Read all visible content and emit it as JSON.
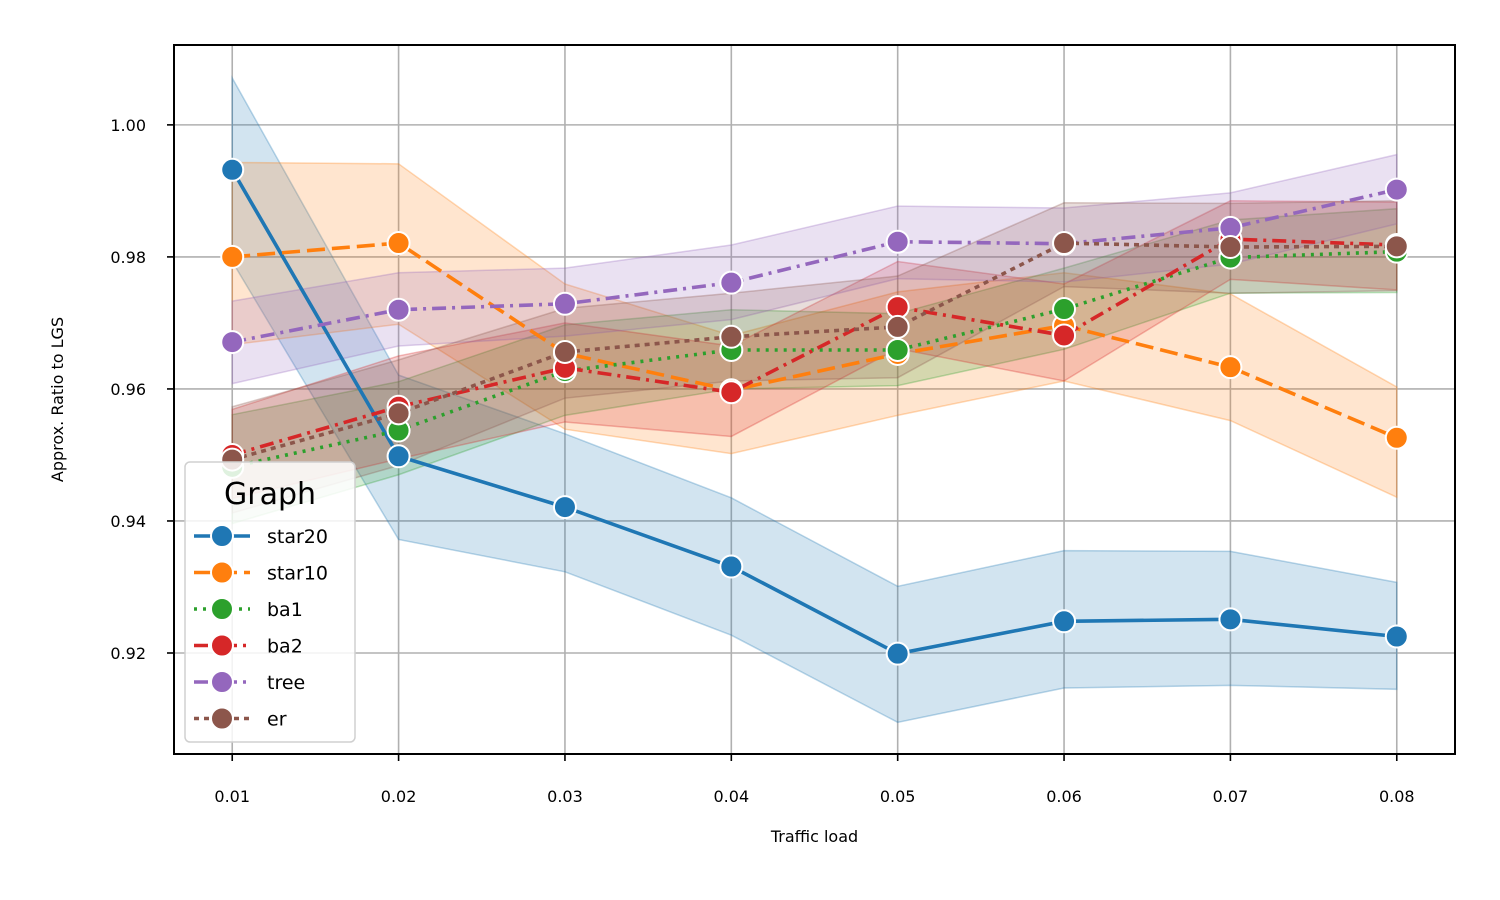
{
  "chart_data": {
    "type": "line",
    "title": "",
    "xlabel": "Traffic load",
    "ylabel": "Approx. Ratio to LGS",
    "x": [
      0.01,
      0.02,
      0.03,
      0.04,
      0.05,
      0.06,
      0.07,
      0.08
    ],
    "x_tick_labels": [
      "0.01",
      "0.02",
      "0.03",
      "0.04",
      "0.05",
      "0.06",
      "0.07",
      "0.08"
    ],
    "y_ticks": [
      0.92,
      0.94,
      0.96,
      0.98,
      1.0
    ],
    "y_tick_labels": [
      "0.92",
      "0.94",
      "0.96",
      "0.98",
      "1.00"
    ],
    "xlim": [
      0.0065,
      0.0835
    ],
    "ylim": [
      0.9047,
      1.0121
    ],
    "grid": true,
    "legend": {
      "title": "Graph",
      "position": "lower-left"
    },
    "series": [
      {
        "name": "star20",
        "color": "#1f77b4",
        "dash": "solid",
        "values": [
          0.9932,
          0.9498,
          0.9421,
          0.9331,
          0.9199,
          0.9248,
          0.9251,
          0.9225
        ],
        "ci_low": [
          0.9793,
          0.9372,
          0.9323,
          0.9227,
          0.9095,
          0.9147,
          0.9151,
          0.9145
        ],
        "ci_high": [
          1.0071,
          0.9621,
          0.9532,
          0.9435,
          0.9301,
          0.9355,
          0.9354,
          0.9307
        ]
      },
      {
        "name": "star10",
        "color": "#ff7f0e",
        "dash": "dashed",
        "values": [
          0.98,
          0.9821,
          0.9654,
          0.9598,
          0.9653,
          0.9696,
          0.9633,
          0.9526
        ],
        "ci_low": [
          0.9667,
          0.9698,
          0.9539,
          0.9502,
          0.956,
          0.9612,
          0.9552,
          0.9436
        ],
        "ci_high": [
          0.9943,
          0.9941,
          0.9759,
          0.9681,
          0.9747,
          0.9776,
          0.9744,
          0.9603
        ]
      },
      {
        "name": "ba1",
        "color": "#2ca02c",
        "dash": "dotted",
        "values": [
          0.9482,
          0.9537,
          0.9627,
          0.9659,
          0.9659,
          0.9721,
          0.9799,
          0.9808
        ],
        "ci_low": [
          0.9396,
          0.947,
          0.956,
          0.96,
          0.9605,
          0.966,
          0.9745,
          0.9746
        ],
        "ci_high": [
          0.9561,
          0.9611,
          0.9697,
          0.972,
          0.9714,
          0.9783,
          0.9856,
          0.9873
        ]
      },
      {
        "name": "ba2",
        "color": "#d62728",
        "dash": "dashdot",
        "values": [
          0.95,
          0.9573,
          0.9632,
          0.9595,
          0.9724,
          0.9681,
          0.9827,
          0.9818
        ],
        "ci_low": [
          0.9434,
          0.9494,
          0.955,
          0.9528,
          0.9661,
          0.9612,
          0.9766,
          0.975
        ],
        "ci_high": [
          0.9569,
          0.965,
          0.97,
          0.9665,
          0.9793,
          0.9759,
          0.9885,
          0.9883
        ]
      },
      {
        "name": "tree",
        "color": "#9467bd",
        "dash": "dashdot",
        "values": [
          0.9671,
          0.972,
          0.9729,
          0.9761,
          0.9823,
          0.982,
          0.9844,
          0.9902
        ],
        "ci_low": [
          0.9608,
          0.9665,
          0.968,
          0.9705,
          0.9767,
          0.9762,
          0.9789,
          0.985
        ],
        "ci_high": [
          0.9733,
          0.9776,
          0.9783,
          0.9818,
          0.9877,
          0.9874,
          0.9897,
          0.9955
        ]
      },
      {
        "name": "er",
        "color": "#8c564b",
        "dash": "densedot",
        "values": [
          0.9493,
          0.9563,
          0.9656,
          0.9679,
          0.9694,
          0.9821,
          0.9815,
          0.9816
        ],
        "ci_low": [
          0.9412,
          0.9484,
          0.9586,
          0.9612,
          0.9617,
          0.9755,
          0.9745,
          0.9749
        ],
        "ci_high": [
          0.9573,
          0.9644,
          0.9722,
          0.9745,
          0.9771,
          0.9882,
          0.9881,
          0.9885
        ]
      }
    ]
  }
}
